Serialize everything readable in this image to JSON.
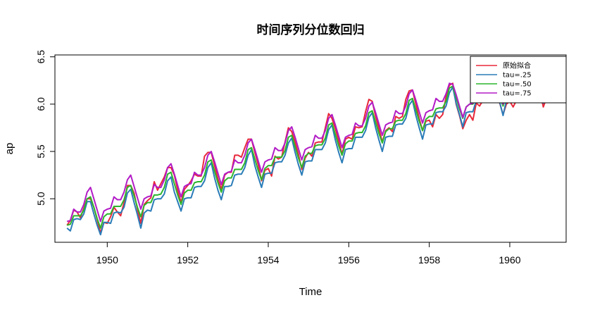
{
  "chart_data": {
    "type": "line",
    "title": "时间序列分位数回归",
    "xlabel": "Time",
    "ylabel": "ap",
    "xlim": [
      1948.7,
      1961.4
    ],
    "ylim": [
      4.54,
      6.52
    ],
    "xticks": [
      1950,
      1952,
      1954,
      1956,
      1958,
      1960
    ],
    "yticks": [
      5.0,
      5.5,
      6.0,
      6.5
    ],
    "ytick_labels": [
      "5.0",
      "5.5",
      "6.0",
      "6.5"
    ],
    "grid": false,
    "legend_position": "top-right",
    "x": [
      1949.0,
      1949.083,
      1949.167,
      1949.25,
      1949.333,
      1949.417,
      1949.5,
      1949.583,
      1949.667,
      1949.75,
      1949.833,
      1949.917,
      1950.0,
      1950.083,
      1950.167,
      1950.25,
      1950.333,
      1950.417,
      1950.5,
      1950.583,
      1950.667,
      1950.75,
      1950.833,
      1950.917,
      1951.0,
      1951.083,
      1951.167,
      1951.25,
      1951.333,
      1951.417,
      1951.5,
      1951.583,
      1951.667,
      1951.75,
      1951.833,
      1951.917,
      1952.0,
      1952.083,
      1952.167,
      1952.25,
      1952.333,
      1952.417,
      1952.5,
      1952.583,
      1952.667,
      1952.75,
      1952.833,
      1952.917,
      1953.0,
      1953.083,
      1953.167,
      1953.25,
      1953.333,
      1953.417,
      1953.5,
      1953.583,
      1953.667,
      1953.75,
      1953.833,
      1953.917,
      1954.0,
      1954.083,
      1954.167,
      1954.25,
      1954.333,
      1954.417,
      1954.5,
      1954.583,
      1954.667,
      1954.75,
      1954.833,
      1954.917,
      1955.0,
      1955.083,
      1955.167,
      1955.25,
      1955.333,
      1955.417,
      1955.5,
      1955.583,
      1955.667,
      1955.75,
      1955.833,
      1955.917,
      1956.0,
      1956.083,
      1956.167,
      1956.25,
      1956.333,
      1956.417,
      1956.5,
      1956.583,
      1956.667,
      1956.75,
      1956.833,
      1956.917,
      1957.0,
      1957.083,
      1957.167,
      1957.25,
      1957.333,
      1957.417,
      1957.5,
      1957.583,
      1957.667,
      1957.75,
      1957.833,
      1957.917,
      1958.0,
      1958.083,
      1958.167,
      1958.25,
      1958.333,
      1958.417,
      1958.5,
      1958.583,
      1958.667,
      1958.75,
      1958.833,
      1958.917,
      1959.0,
      1959.083,
      1959.167,
      1959.25,
      1959.333,
      1959.417,
      1959.5,
      1959.583,
      1959.667,
      1959.75,
      1959.833,
      1959.917,
      1960.0,
      1960.083,
      1960.167,
      1960.25,
      1960.333,
      1960.417,
      1960.5,
      1960.583,
      1960.667,
      1960.75,
      1960.833,
      1960.917
    ],
    "series": [
      {
        "name": "原始拟合",
        "color": "#E8283A",
        "values": [
          4.72,
          4.77,
          4.88,
          4.86,
          4.8,
          4.9,
          5.0,
          5.0,
          4.91,
          4.78,
          4.64,
          4.75,
          4.74,
          4.81,
          4.91,
          4.86,
          4.82,
          4.96,
          5.14,
          5.14,
          5.06,
          4.89,
          4.74,
          4.94,
          4.98,
          5.01,
          5.18,
          5.09,
          5.16,
          5.23,
          5.33,
          5.33,
          5.25,
          5.09,
          4.96,
          5.1,
          5.14,
          5.19,
          5.26,
          5.24,
          5.24,
          5.45,
          5.49,
          5.49,
          5.35,
          5.21,
          5.1,
          5.25,
          5.28,
          5.28,
          5.46,
          5.46,
          5.44,
          5.54,
          5.63,
          5.63,
          5.49,
          5.36,
          5.19,
          5.3,
          5.32,
          5.24,
          5.45,
          5.42,
          5.44,
          5.6,
          5.75,
          5.71,
          5.6,
          5.47,
          5.31,
          5.43,
          5.49,
          5.45,
          5.59,
          5.6,
          5.6,
          5.75,
          5.9,
          5.85,
          5.74,
          5.61,
          5.47,
          5.63,
          5.65,
          5.63,
          5.76,
          5.75,
          5.76,
          5.92,
          6.05,
          6.03,
          5.87,
          5.74,
          5.6,
          5.72,
          5.75,
          5.71,
          5.87,
          5.85,
          5.87,
          6.05,
          6.14,
          6.15,
          6.0,
          5.85,
          5.72,
          5.82,
          5.83,
          5.76,
          5.89,
          5.85,
          5.89,
          6.08,
          6.2,
          6.22,
          6.0,
          5.88,
          5.74,
          5.83,
          5.89,
          5.83,
          6.01,
          5.98,
          6.04,
          6.16,
          6.31,
          6.33,
          6.14,
          6.01,
          5.89,
          6.0,
          6.03,
          5.97,
          6.04,
          6.13,
          6.16,
          6.28,
          6.43,
          6.41,
          6.23,
          6.13,
          5.97,
          6.07
        ]
      },
      {
        "name": "tau=.25",
        "color": "#2A7CB8",
        "values": [
          4.69,
          4.66,
          4.78,
          4.79,
          4.78,
          4.84,
          4.97,
          4.97,
          4.84,
          4.72,
          4.62,
          4.75,
          4.75,
          4.74,
          4.85,
          4.86,
          4.85,
          4.91,
          5.06,
          5.1,
          4.96,
          4.83,
          4.69,
          4.85,
          4.88,
          4.87,
          4.99,
          5.0,
          5.0,
          5.05,
          5.19,
          5.23,
          5.07,
          4.97,
          4.87,
          5.0,
          5.01,
          5.01,
          5.12,
          5.13,
          5.13,
          5.19,
          5.33,
          5.38,
          5.22,
          5.09,
          4.99,
          5.13,
          5.13,
          5.14,
          5.25,
          5.26,
          5.26,
          5.33,
          5.46,
          5.52,
          5.35,
          5.23,
          5.12,
          5.26,
          5.27,
          5.27,
          5.38,
          5.39,
          5.39,
          5.46,
          5.59,
          5.64,
          5.49,
          5.36,
          5.25,
          5.39,
          5.4,
          5.4,
          5.52,
          5.52,
          5.52,
          5.59,
          5.73,
          5.78,
          5.62,
          5.49,
          5.38,
          5.52,
          5.53,
          5.53,
          5.65,
          5.65,
          5.65,
          5.72,
          5.86,
          5.91,
          5.75,
          5.62,
          5.5,
          5.65,
          5.66,
          5.66,
          5.78,
          5.79,
          5.79,
          5.85,
          5.99,
          6.04,
          5.88,
          5.75,
          5.63,
          5.78,
          5.79,
          5.79,
          5.91,
          5.92,
          5.92,
          5.98,
          6.12,
          6.18,
          6.01,
          5.89,
          5.76,
          5.91,
          5.92,
          5.92,
          6.04,
          6.05,
          6.05,
          6.11,
          6.25,
          6.31,
          6.14,
          6.02,
          5.88,
          6.04,
          6.05,
          6.05,
          6.17,
          6.18,
          6.18,
          6.24,
          6.38,
          6.44,
          6.27,
          6.15,
          6.01,
          6.17
        ]
      },
      {
        "name": "tau=.50",
        "color": "#2DB52D",
        "values": [
          4.72,
          4.73,
          4.82,
          4.82,
          4.82,
          4.88,
          5.0,
          5.02,
          4.91,
          4.79,
          4.69,
          4.81,
          4.84,
          4.84,
          4.92,
          4.92,
          4.92,
          4.99,
          5.12,
          5.14,
          5.03,
          4.91,
          4.81,
          4.93,
          4.96,
          4.96,
          5.04,
          5.04,
          5.05,
          5.12,
          5.26,
          5.28,
          5.16,
          5.04,
          4.94,
          5.06,
          5.09,
          5.09,
          5.17,
          5.18,
          5.18,
          5.25,
          5.39,
          5.41,
          5.29,
          5.17,
          5.07,
          5.19,
          5.22,
          5.22,
          5.31,
          5.31,
          5.31,
          5.38,
          5.52,
          5.54,
          5.42,
          5.3,
          5.2,
          5.32,
          5.35,
          5.35,
          5.44,
          5.44,
          5.44,
          5.51,
          5.65,
          5.67,
          5.55,
          5.43,
          5.33,
          5.45,
          5.48,
          5.48,
          5.56,
          5.57,
          5.57,
          5.64,
          5.78,
          5.8,
          5.68,
          5.56,
          5.46,
          5.58,
          5.61,
          5.61,
          5.69,
          5.7,
          5.7,
          5.77,
          5.91,
          5.93,
          5.81,
          5.69,
          5.59,
          5.71,
          5.74,
          5.74,
          5.82,
          5.83,
          5.83,
          5.9,
          6.04,
          6.06,
          5.94,
          5.82,
          5.72,
          5.84,
          5.87,
          5.87,
          5.95,
          5.96,
          5.96,
          6.03,
          6.17,
          6.19,
          6.07,
          5.95,
          5.85,
          5.97,
          6.0,
          6.0,
          6.08,
          6.09,
          6.09,
          6.16,
          6.3,
          6.32,
          6.2,
          6.08,
          5.98,
          6.1,
          6.13,
          6.13,
          6.21,
          6.22,
          6.22,
          6.29,
          6.43,
          6.45,
          6.33,
          6.21,
          6.11,
          6.23
        ]
      },
      {
        "name": "tau=.75",
        "color": "#B21BC6",
        "values": [
          4.76,
          4.77,
          4.89,
          4.86,
          4.86,
          4.94,
          5.07,
          5.12,
          5.0,
          4.88,
          4.76,
          4.87,
          4.89,
          4.9,
          5.02,
          4.99,
          4.99,
          5.07,
          5.2,
          5.25,
          5.13,
          5.01,
          4.89,
          5.0,
          5.02,
          5.03,
          5.15,
          5.12,
          5.12,
          5.2,
          5.33,
          5.37,
          5.26,
          5.14,
          5.02,
          5.13,
          5.15,
          5.16,
          5.28,
          5.25,
          5.25,
          5.33,
          5.46,
          5.5,
          5.39,
          5.27,
          5.15,
          5.26,
          5.28,
          5.29,
          5.41,
          5.38,
          5.38,
          5.46,
          5.59,
          5.63,
          5.52,
          5.4,
          5.28,
          5.39,
          5.41,
          5.42,
          5.54,
          5.51,
          5.51,
          5.59,
          5.72,
          5.76,
          5.65,
          5.53,
          5.41,
          5.52,
          5.54,
          5.55,
          5.67,
          5.64,
          5.64,
          5.72,
          5.85,
          5.89,
          5.78,
          5.66,
          5.54,
          5.65,
          5.67,
          5.68,
          5.8,
          5.77,
          5.77,
          5.85,
          5.98,
          6.02,
          5.91,
          5.79,
          5.67,
          5.78,
          5.8,
          5.81,
          5.93,
          5.9,
          5.9,
          5.98,
          6.11,
          6.15,
          6.04,
          5.92,
          5.8,
          5.91,
          5.93,
          5.94,
          6.06,
          6.03,
          6.03,
          6.11,
          6.22,
          6.21,
          6.1,
          5.98,
          5.86,
          5.97,
          6.0,
          6.01,
          6.13,
          6.1,
          6.1,
          6.18,
          6.31,
          6.35,
          6.24,
          6.12,
          6.0,
          6.11,
          6.13,
          6.14,
          6.26,
          6.23,
          6.23,
          6.31,
          6.44,
          6.48,
          6.37,
          6.25,
          6.13,
          6.24
        ]
      }
    ]
  }
}
